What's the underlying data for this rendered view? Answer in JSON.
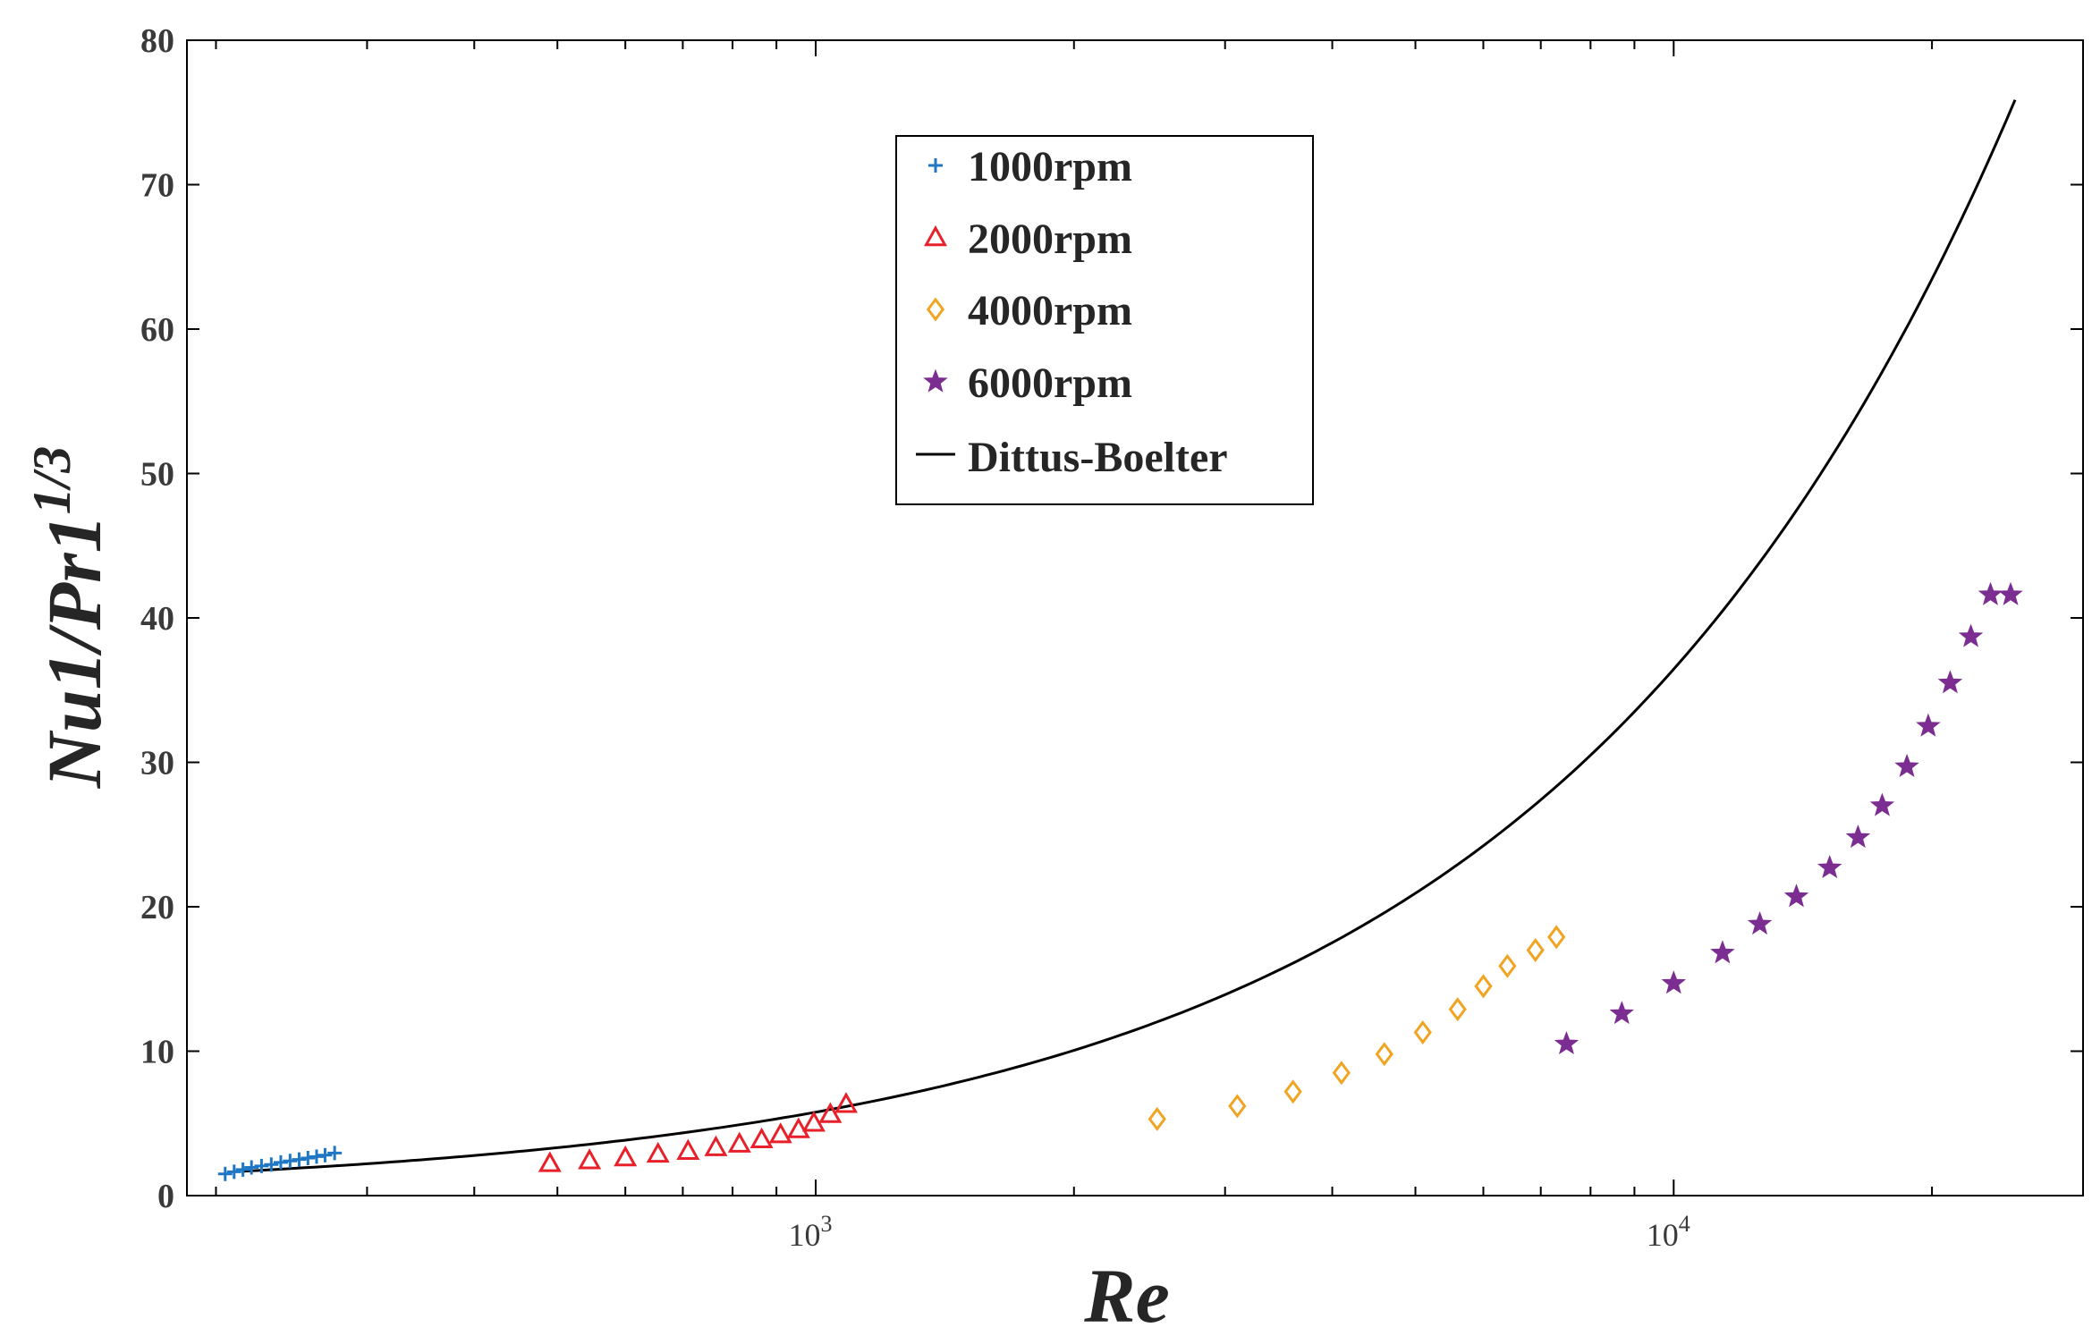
{
  "chart_data": {
    "type": "scatter",
    "title": "",
    "xlabel": "Re",
    "ylabel": "Nu1/Pr1",
    "ylabel_exponent": "1/3",
    "xscale": "log",
    "xlim": [
      185,
      30000
    ],
    "ylim": [
      0,
      80
    ],
    "yticks": [
      "0",
      "10",
      "20",
      "30",
      "40",
      "50",
      "60",
      "70",
      "80"
    ],
    "xticks": [
      {
        "base": "10",
        "exp": "3",
        "value": 1000
      },
      {
        "base": "10",
        "exp": "4",
        "value": 10000
      }
    ],
    "legend_position": "top-center",
    "series": [
      {
        "name": "1000rpm",
        "marker": "plus",
        "color": "#1f77c4",
        "x": [
          205,
          210,
          215,
          220,
          226,
          232,
          238,
          244,
          250,
          256,
          262,
          268,
          275
        ],
        "y": [
          1.5,
          1.65,
          1.8,
          1.95,
          2.05,
          2.15,
          2.3,
          2.4,
          2.5,
          2.6,
          2.7,
          2.8,
          2.95
        ]
      },
      {
        "name": "2000rpm",
        "marker": "triangle",
        "color": "#e8202a",
        "x": [
          490,
          545,
          600,
          655,
          710,
          765,
          815,
          865,
          910,
          955,
          995,
          1040,
          1085
        ],
        "y": [
          2.2,
          2.4,
          2.6,
          2.85,
          3.05,
          3.3,
          3.55,
          3.85,
          4.2,
          4.55,
          5.0,
          5.6,
          6.3
        ]
      },
      {
        "name": "4000rpm",
        "marker": "diamond",
        "color": "#f0a422",
        "x": [
          2500,
          3100,
          3600,
          4100,
          4600,
          5100,
          5600,
          6000,
          6400,
          6900,
          7300
        ],
        "y": [
          5.3,
          6.2,
          7.2,
          8.5,
          9.8,
          11.3,
          12.9,
          14.5,
          15.9,
          17.0,
          17.9
        ]
      },
      {
        "name": "6000rpm",
        "marker": "star",
        "color": "#7b2d91",
        "x": [
          7500,
          8700,
          10000,
          11400,
          12600,
          13900,
          15200,
          16400,
          17500,
          18700,
          19800,
          21000,
          22200,
          23400,
          24700
        ],
        "y": [
          10.5,
          12.6,
          14.7,
          16.8,
          18.8,
          20.7,
          22.7,
          24.8,
          27.0,
          29.7,
          32.5,
          35.5,
          38.7,
          41.6,
          41.6
        ]
      }
    ],
    "line": {
      "name": "Dittus-Boelter",
      "color": "#000000",
      "formula": "0.023*Re^0.8",
      "x_range": [
        215,
        25000
      ]
    }
  }
}
